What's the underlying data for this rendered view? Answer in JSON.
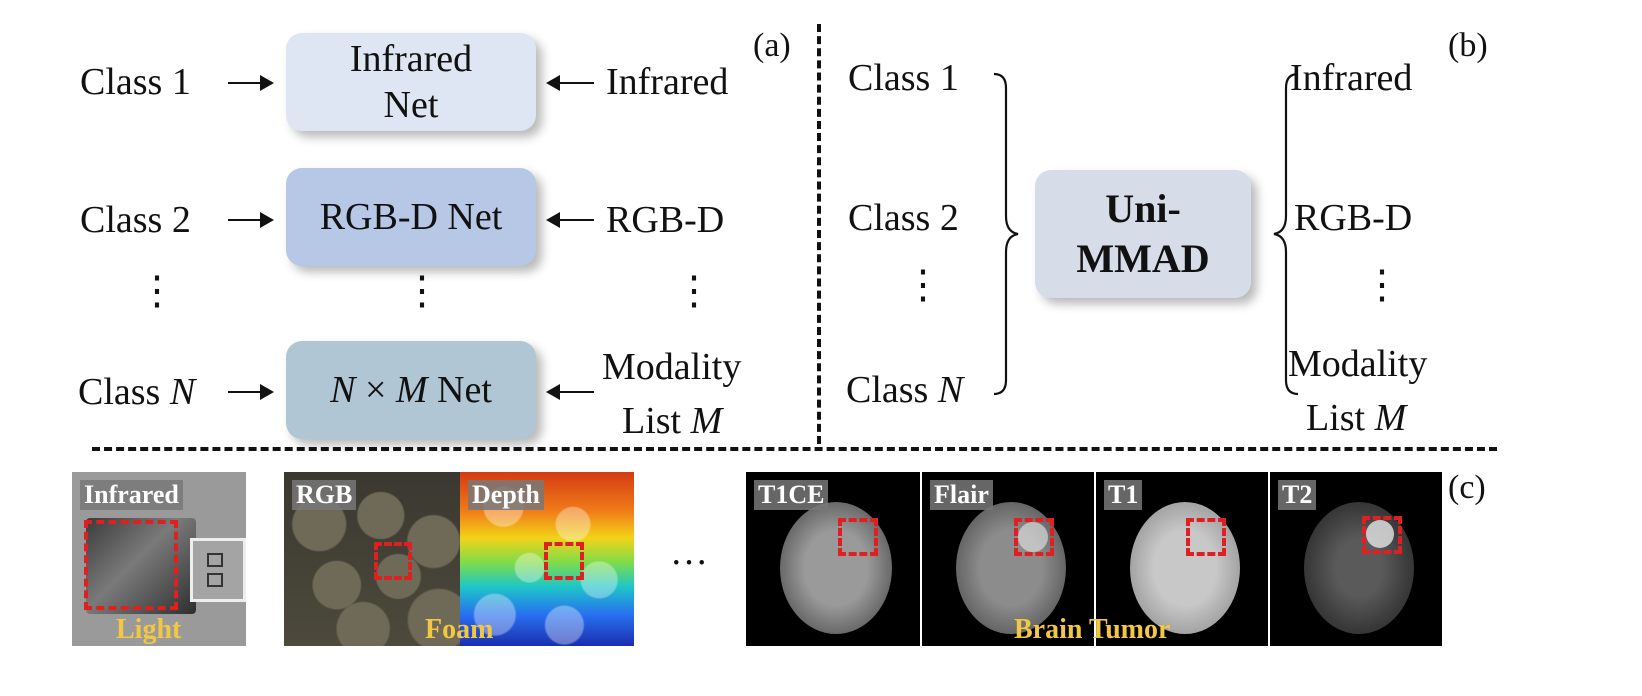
{
  "panel_a": {
    "tag": "(a)",
    "rows": [
      {
        "class_label": "Class 1",
        "net_label": "Infrared\nNet",
        "modality_label": "Infrared",
        "color": "#dde6f2"
      },
      {
        "class_label": "Class 2",
        "net_label": "RGB-D Net",
        "modality_label": "RGB-D",
        "color": "#b7c7e6"
      },
      {
        "class_label": "Class",
        "class_var": "N",
        "net_label": "× ",
        "net_var_n": "N",
        "net_var_m": "M",
        "net_suffix": " Net",
        "modality_label": "Modality",
        "modality_label2": "List",
        "modality_var": "M",
        "color": "#b0c6d4"
      }
    ],
    "dots": "⋮"
  },
  "panel_b": {
    "tag": "(b)",
    "classes": [
      "Class 1",
      "Class 2",
      "Class"
    ],
    "class_var": "N",
    "model_label_1": "Uni-",
    "model_label_2": "MMAD",
    "modalities": [
      "Infrared",
      "RGB-D",
      "Modality",
      "List"
    ],
    "modality_var": "M",
    "dots": "⋮"
  },
  "panel_c": {
    "tag": "(c)",
    "ellipsis": "…",
    "light": {
      "label": "Infrared",
      "caption": "Light"
    },
    "foam": {
      "label_rgb": "RGB",
      "label_depth": "Depth",
      "caption": "Foam"
    },
    "brain": {
      "labels": [
        "T1CE",
        "Flair",
        "T1",
        "T2"
      ],
      "caption_1": "Brain",
      "caption_2": "Tumor"
    }
  },
  "colors": {
    "roi": "#e02020",
    "caption": "#f2c744",
    "model_box": "#d6dde9"
  }
}
